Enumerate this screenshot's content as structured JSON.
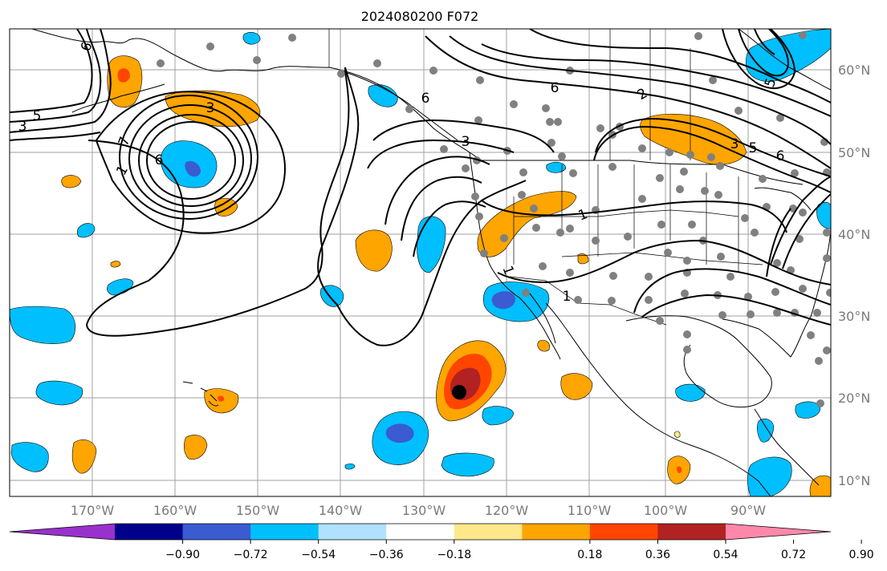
{
  "title": "2024080200 F072",
  "lon_labels": [
    "170°W",
    "160°W",
    "150°W",
    "140°W",
    "130°W",
    "120°W",
    "110°W",
    "100°W",
    "90°W"
  ],
  "lat_labels": [
    "60°N",
    "50°N",
    "40°N",
    "30°N",
    "20°N",
    "10°N"
  ],
  "colorbar": {
    "colors": [
      "#9932cc",
      "#00008b",
      "#3a5bd1",
      "#00bfff",
      "#b0e2ff",
      "#ffffff",
      "#ffe88a",
      "#ffa500",
      "#ff4500",
      "#b22222",
      "#ff88aa"
    ],
    "labels": [
      "−0.90",
      "−0.72",
      "−0.54",
      "−0.36",
      "−0.18",
      "0.18",
      "0.36",
      "0.54",
      "0.72",
      "0.90"
    ]
  },
  "contour_labels": [
    "6",
    "5",
    "3",
    "7",
    "1",
    "6",
    "3",
    "1",
    "6",
    "2",
    "3",
    "6",
    "1",
    "1",
    "5",
    "3",
    "5",
    "6"
  ],
  "shading_colors": {
    "neg_light": "#00bfff",
    "neg_mid": "#3a5bd1",
    "pos_light": "#ffa500",
    "pos_mid": "#ff4500",
    "pos_dark": "#b22222",
    "station": "#808080",
    "storm": "#000000"
  }
}
